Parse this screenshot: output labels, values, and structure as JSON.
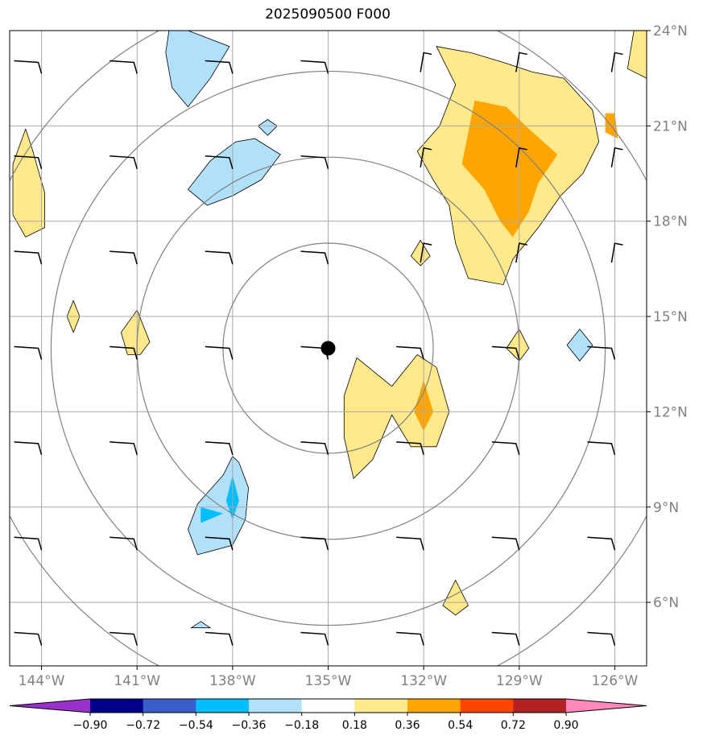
{
  "title": "2025090500 F000",
  "chart_data": {
    "type": "heatmap",
    "title": "2025090500 F000",
    "lon_range": [
      -145,
      -125
    ],
    "lat_range": [
      4,
      24
    ],
    "x_ticks": [
      -144,
      -141,
      -138,
      -135,
      -132,
      -129,
      -126
    ],
    "x_tick_labels": [
      "144°W",
      "141°W",
      "138°W",
      "135°W",
      "132°W",
      "129°W",
      "126°W"
    ],
    "y_ticks": [
      6,
      9,
      12,
      15,
      18,
      21,
      24
    ],
    "y_tick_labels": [
      "6°N",
      "9°N",
      "12°N",
      "15°N",
      "18°N",
      "21°N",
      "24°N"
    ],
    "grid": true,
    "storm_center": {
      "lon": -135,
      "lat": 14
    },
    "range_ring_radii_deg": [
      3.3,
      6,
      8.7,
      11.3
    ],
    "colorbar": {
      "levels": [
        -0.9,
        -0.72,
        -0.54,
        -0.36,
        -0.18,
        0.18,
        0.36,
        0.54,
        0.72,
        0.9
      ],
      "tick_labels": [
        "−0.90",
        "−0.72",
        "−0.54",
        "−0.36",
        "−0.18",
        "0.18",
        "0.36",
        "0.54",
        "0.72",
        "0.90"
      ],
      "colors": [
        "#9932cc",
        "#00008b",
        "#3a5fcd",
        "#00bfff",
        "#b0e0fa",
        "#ffffff",
        "#ffe98a",
        "#ffa500",
        "#ff4500",
        "#b22222",
        "#ff88b8"
      ],
      "extend": "both"
    },
    "contour_regions": [
      {
        "level": 0.18,
        "polygon": [
          [
            -131.6,
            23.5
          ],
          [
            -130.5,
            23.3
          ],
          [
            -129.5,
            23.0
          ],
          [
            -128.6,
            22.7
          ],
          [
            -127.6,
            22.5
          ],
          [
            -126.7,
            21.5
          ],
          [
            -126.5,
            20.5
          ],
          [
            -127.0,
            19.5
          ],
          [
            -127.7,
            18.8
          ],
          [
            -128.4,
            17.8
          ],
          [
            -129.2,
            16.8
          ],
          [
            -129.5,
            16.0
          ],
          [
            -130.6,
            16.2
          ],
          [
            -131.0,
            17.3
          ],
          [
            -131.2,
            18.5
          ],
          [
            -131.7,
            19.3
          ],
          [
            -132.2,
            20.2
          ],
          [
            -131.5,
            21.0
          ],
          [
            -131.0,
            22.3
          ]
        ]
      },
      {
        "level": 0.18,
        "polygon": [
          [
            -125.4,
            24.0
          ],
          [
            -125.0,
            24.0
          ],
          [
            -125.0,
            22.5
          ],
          [
            -125.6,
            22.8
          ]
        ]
      },
      {
        "level": 0.36,
        "polygon": [
          [
            -130.4,
            21.8
          ],
          [
            -129.4,
            21.6
          ],
          [
            -128.8,
            21.0
          ],
          [
            -127.8,
            20.1
          ],
          [
            -128.4,
            19.2
          ],
          [
            -128.7,
            18.3
          ],
          [
            -129.2,
            17.5
          ],
          [
            -129.6,
            18.0
          ],
          [
            -130.1,
            19.0
          ],
          [
            -130.8,
            19.8
          ],
          [
            -130.6,
            20.8
          ]
        ]
      },
      {
        "level": 0.36,
        "polygon": [
          [
            -126.3,
            21.4
          ],
          [
            -126.0,
            21.4
          ],
          [
            -125.9,
            20.6
          ],
          [
            -126.3,
            20.8
          ]
        ]
      },
      {
        "level": 0.18,
        "polygon": [
          [
            -144.5,
            20.9
          ],
          [
            -144.3,
            20.3
          ],
          [
            -143.9,
            18.9
          ],
          [
            -143.9,
            17.8
          ],
          [
            -144.5,
            17.5
          ],
          [
            -144.9,
            18.2
          ],
          [
            -144.9,
            19.8
          ]
        ]
      },
      {
        "level": 0.18,
        "polygon": [
          [
            -134.1,
            13.7
          ],
          [
            -133.0,
            12.8
          ],
          [
            -132.2,
            13.8
          ],
          [
            -131.6,
            13.4
          ],
          [
            -131.2,
            12.0
          ],
          [
            -131.6,
            10.9
          ],
          [
            -132.4,
            10.9
          ],
          [
            -133.0,
            11.9
          ],
          [
            -133.6,
            10.5
          ],
          [
            -134.2,
            9.9
          ],
          [
            -134.5,
            11.2
          ],
          [
            -134.5,
            12.5
          ]
        ]
      },
      {
        "level": 0.36,
        "polygon": [
          [
            -132.0,
            13.0
          ],
          [
            -131.7,
            12.0
          ],
          [
            -132.0,
            11.4
          ],
          [
            -132.3,
            12.0
          ]
        ]
      },
      {
        "level": 0.18,
        "polygon": [
          [
            -141.0,
            15.2
          ],
          [
            -140.6,
            14.2
          ],
          [
            -140.9,
            13.8
          ],
          [
            -141.3,
            13.8
          ],
          [
            -141.5,
            14.5
          ]
        ]
      },
      {
        "level": 0.18,
        "polygon": [
          [
            -143.0,
            15.5
          ],
          [
            -142.8,
            15.0
          ],
          [
            -143.0,
            14.5
          ],
          [
            -143.2,
            15.0
          ]
        ]
      },
      {
        "level": 0.18,
        "polygon": [
          [
            -132.1,
            17.4
          ],
          [
            -131.8,
            16.9
          ],
          [
            -132.1,
            16.6
          ],
          [
            -132.4,
            16.9
          ]
        ]
      },
      {
        "level": 0.18,
        "polygon": [
          [
            -129.0,
            14.6
          ],
          [
            -128.7,
            14.0
          ],
          [
            -129.0,
            13.6
          ],
          [
            -129.4,
            14.0
          ]
        ]
      },
      {
        "level": 0.18,
        "polygon": [
          [
            -131.0,
            6.7
          ],
          [
            -130.6,
            5.9
          ],
          [
            -131.0,
            5.6
          ],
          [
            -131.4,
            5.9
          ]
        ]
      },
      {
        "level": -0.18,
        "polygon": [
          [
            -139.4,
            24.0
          ],
          [
            -138.1,
            23.5
          ],
          [
            -138.7,
            22.5
          ],
          [
            -139.4,
            21.6
          ],
          [
            -139.9,
            22.2
          ],
          [
            -140.1,
            23.3
          ],
          [
            -140.0,
            24.0
          ]
        ]
      },
      {
        "level": -0.18,
        "polygon": [
          [
            -137.3,
            20.6
          ],
          [
            -136.5,
            20.1
          ],
          [
            -137.1,
            19.3
          ],
          [
            -138.0,
            18.8
          ],
          [
            -138.8,
            18.5
          ],
          [
            -139.4,
            19.0
          ],
          [
            -138.7,
            19.9
          ],
          [
            -137.9,
            20.5
          ]
        ]
      },
      {
        "level": -0.18,
        "polygon": [
          [
            -137.8,
            10.4
          ],
          [
            -137.5,
            9.6
          ],
          [
            -137.6,
            8.6
          ],
          [
            -138.0,
            7.8
          ],
          [
            -139.1,
            7.5
          ],
          [
            -139.4,
            8.3
          ],
          [
            -139.1,
            9.1
          ],
          [
            -138.3,
            10.0
          ],
          [
            -138.0,
            10.6
          ]
        ]
      },
      {
        "level": -0.36,
        "polygon": [
          [
            -138.0,
            10.0
          ],
          [
            -137.8,
            9.2
          ],
          [
            -138.0,
            8.6
          ],
          [
            -138.2,
            9.2
          ]
        ]
      },
      {
        "level": -0.36,
        "polygon": [
          [
            -139.0,
            9.0
          ],
          [
            -138.3,
            8.8
          ],
          [
            -139.0,
            8.5
          ]
        ]
      },
      {
        "level": -0.18,
        "polygon": [
          [
            -136.9,
            21.2
          ],
          [
            -136.6,
            21.0
          ],
          [
            -136.9,
            20.7
          ],
          [
            -137.2,
            21.0
          ]
        ]
      },
      {
        "level": -0.18,
        "polygon": [
          [
            -127.1,
            14.6
          ],
          [
            -126.7,
            14.1
          ],
          [
            -127.1,
            13.6
          ],
          [
            -127.5,
            14.1
          ]
        ]
      },
      {
        "level": -0.18,
        "polygon": [
          [
            -139.0,
            5.4
          ],
          [
            -138.7,
            5.2
          ],
          [
            -139.3,
            5.2
          ]
        ]
      }
    ],
    "wind_barbs_lon": [
      -144,
      -141,
      -138,
      -135,
      -132,
      -129,
      -126
    ],
    "wind_barbs_lat": [
      5,
      8,
      11,
      14,
      17,
      20,
      23
    ]
  }
}
